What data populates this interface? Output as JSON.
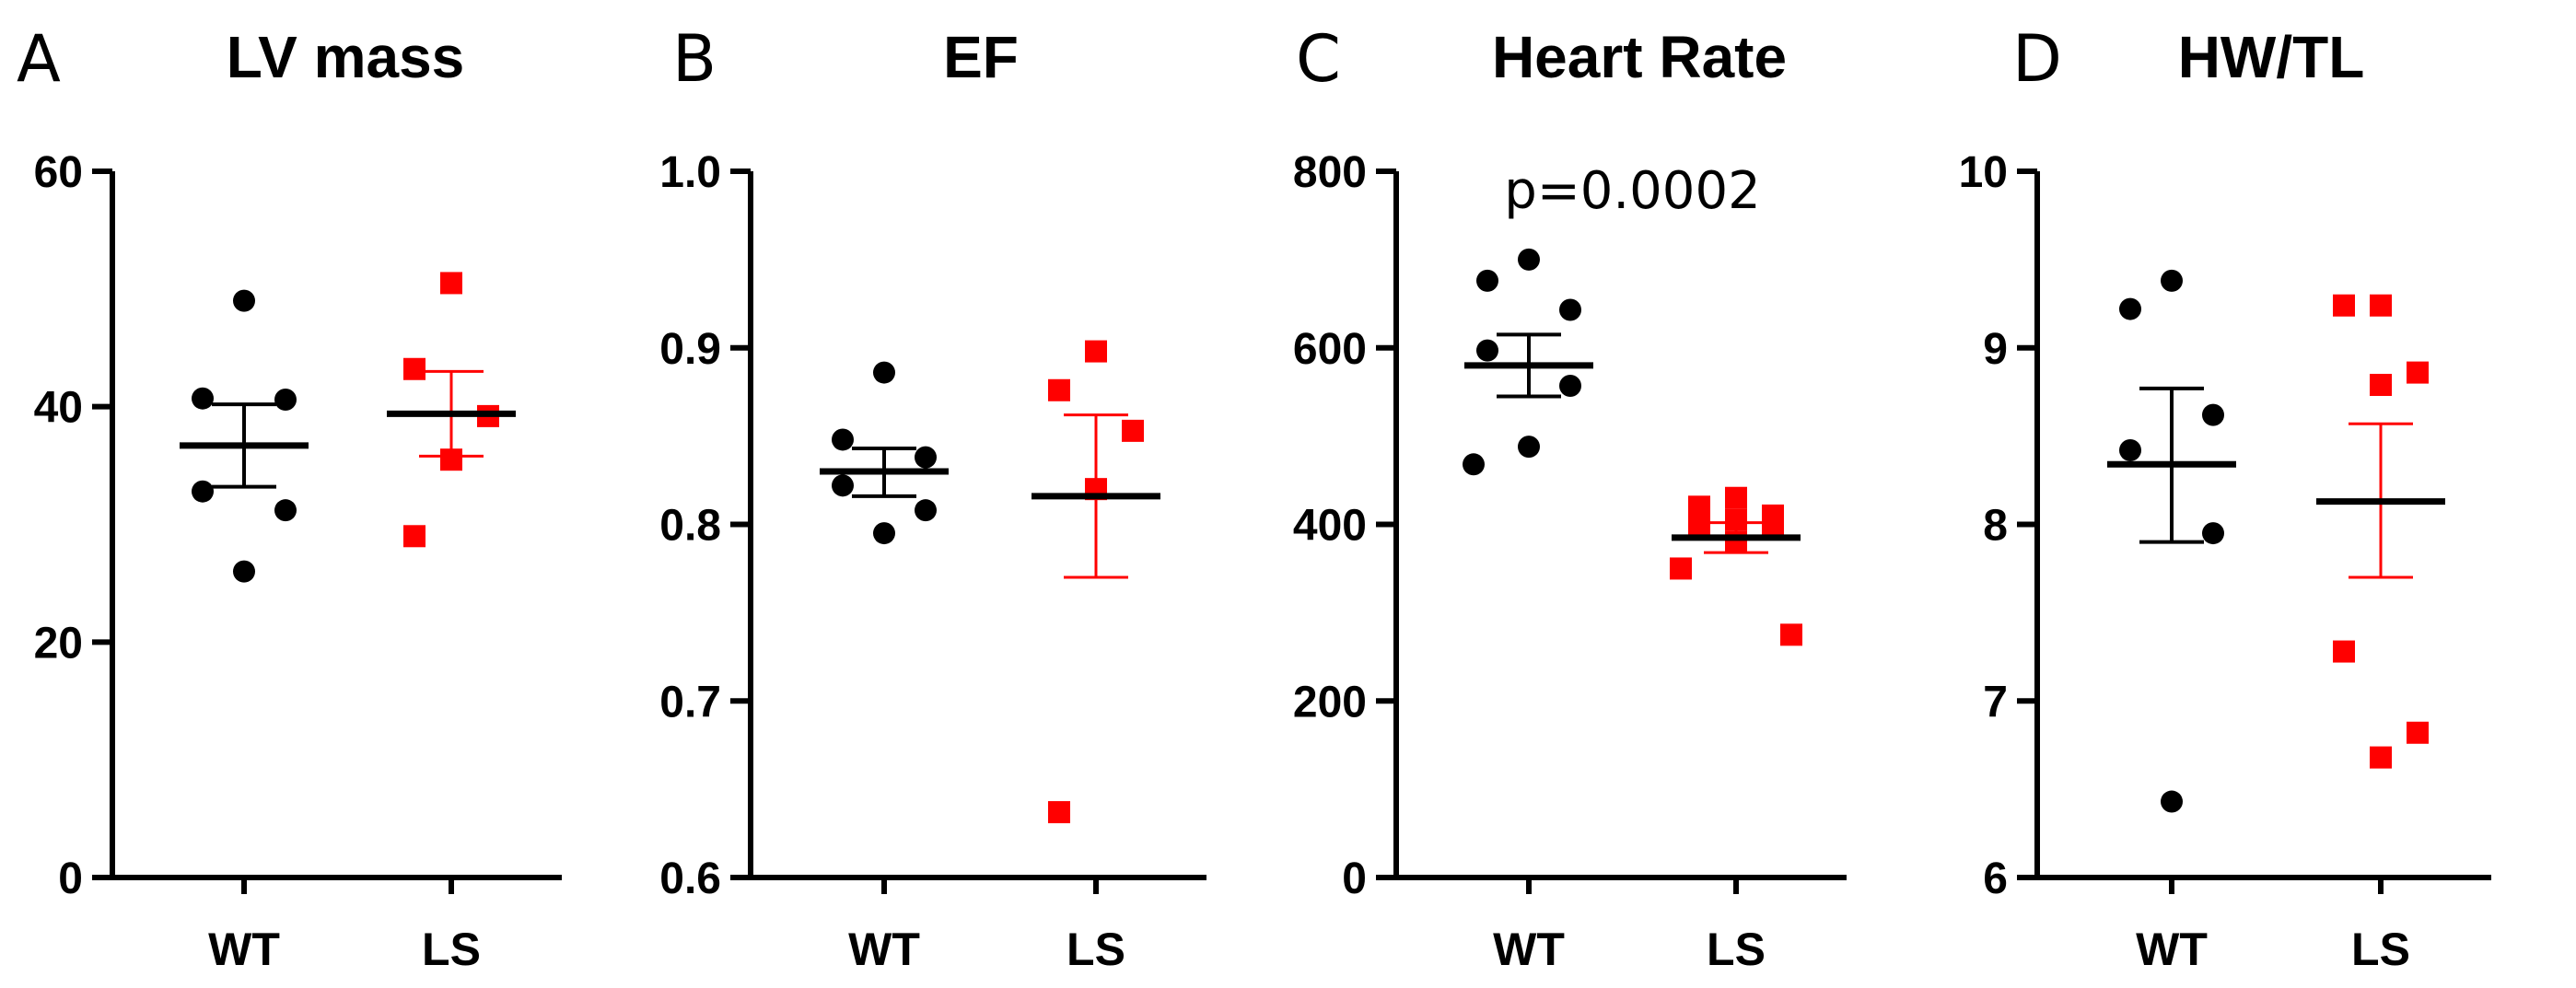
{
  "colors": {
    "WT": "#000000",
    "LS": "#ff0000"
  },
  "chart_data": [
    {
      "type": "scatter",
      "panel_letter": "A",
      "title": "LV mass",
      "categories": [
        "WT",
        "LS"
      ],
      "ylim": [
        0,
        60
      ],
      "yticks": [
        0,
        20,
        40,
        60
      ],
      "ytick_labels": [
        "0",
        "20",
        "40",
        "60"
      ],
      "series": [
        {
          "name": "WT",
          "marker": "circle",
          "color": "#000000",
          "values": [
            49,
            40.7,
            40.6,
            32.8,
            31.2,
            26
          ],
          "mean": 36.7,
          "sem_low": 33.2,
          "sem_high": 40.2
        },
        {
          "name": "LS",
          "marker": "square",
          "color": "#ff0000",
          "values": [
            50.5,
            43.2,
            39.2,
            35.5,
            29
          ],
          "mean": 39.4,
          "sem_low": 35.8,
          "sem_high": 43
        }
      ],
      "annotation": ""
    },
    {
      "type": "scatter",
      "panel_letter": "B",
      "title": "EF",
      "categories": [
        "WT",
        "LS"
      ],
      "ylim": [
        0.6,
        1.0
      ],
      "yticks": [
        0.6,
        0.7,
        0.8,
        0.9,
        1.0
      ],
      "ytick_labels": [
        "0.6",
        "0.7",
        "0.8",
        "0.9",
        "1.0"
      ],
      "series": [
        {
          "name": "WT",
          "marker": "circle",
          "color": "#000000",
          "values": [
            0.886,
            0.848,
            0.838,
            0.822,
            0.808,
            0.795
          ],
          "mean": 0.83,
          "sem_low": 0.816,
          "sem_high": 0.843
        },
        {
          "name": "LS",
          "marker": "square",
          "color": "#ff0000",
          "values": [
            0.898,
            0.876,
            0.853,
            0.82,
            0.637
          ],
          "mean": 0.816,
          "sem_low": 0.77,
          "sem_high": 0.862
        }
      ],
      "annotation": ""
    },
    {
      "type": "scatter",
      "panel_letter": "C",
      "title": "Heart Rate",
      "categories": [
        "WT",
        "LS"
      ],
      "ylim": [
        0,
        800
      ],
      "yticks": [
        0,
        200,
        400,
        600,
        800
      ],
      "ytick_labels": [
        "0",
        "200",
        "400",
        "600",
        "800"
      ],
      "series": [
        {
          "name": "WT",
          "marker": "circle",
          "color": "#000000",
          "values": [
            700,
            676,
            643,
            597,
            557,
            488,
            468
          ],
          "mean": 580,
          "sem_low": 545,
          "sem_high": 615
        },
        {
          "name": "LS",
          "marker": "square",
          "color": "#ff0000",
          "values": [
            430,
            420,
            410,
            405,
            400,
            395,
            380,
            350,
            275
          ],
          "mean": 385,
          "sem_low": 368,
          "sem_high": 402
        }
      ],
      "annotation": "p=0.0002"
    },
    {
      "type": "scatter",
      "panel_letter": "D",
      "title": "HW/TL",
      "categories": [
        "WT",
        "LS"
      ],
      "ylim": [
        6,
        10
      ],
      "yticks": [
        6,
        7,
        8,
        9,
        10
      ],
      "ytick_labels": [
        "6",
        "7",
        "8",
        "9",
        "10"
      ],
      "series": [
        {
          "name": "WT",
          "marker": "circle",
          "color": "#000000",
          "values": [
            9.38,
            9.22,
            8.62,
            8.42,
            7.95,
            6.43
          ],
          "mean": 8.34,
          "sem_low": 7.9,
          "sem_high": 8.77
        },
        {
          "name": "LS",
          "marker": "square",
          "color": "#ff0000",
          "values": [
            9.24,
            9.24,
            8.86,
            8.79,
            7.28,
            6.82,
            6.68
          ],
          "mean": 8.13,
          "sem_low": 7.7,
          "sem_high": 8.57
        }
      ],
      "annotation": ""
    }
  ]
}
